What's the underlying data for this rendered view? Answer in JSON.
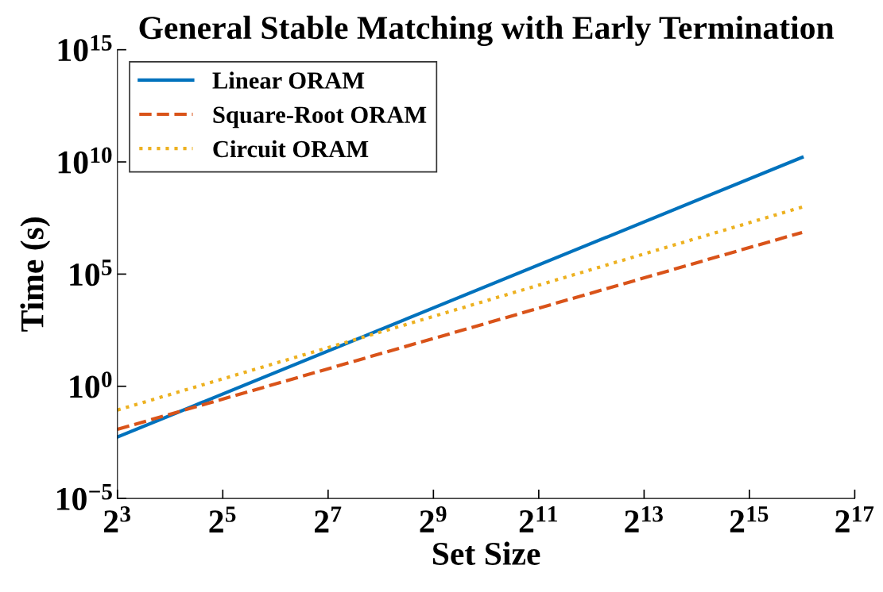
{
  "chart_data": {
    "type": "line",
    "title": "General Stable Matching with Early Termination",
    "xlabel": "Set Size",
    "ylabel": "Time (s)",
    "log": "xy",
    "legend": "top left",
    "grid": false,
    "xlim": [
      8,
      131072
    ],
    "xticks": [
      {
        "value": 8,
        "label": "2$^{3}$"
      },
      {
        "value": 32,
        "label": "2$^{5}$"
      },
      {
        "value": 128,
        "label": "2$^{7}$"
      },
      {
        "value": 512,
        "label": "2$^{9}$"
      },
      {
        "value": 2048,
        "label": "2$^{11}$"
      },
      {
        "value": 8192,
        "label": "2$^{13}$"
      },
      {
        "value": 32768,
        "label": "2$^{15}$"
      },
      {
        "value": 131072,
        "label": "2$^{17}$"
      }
    ],
    "ylim": [
      1e-05,
      1000000000000000.0
    ],
    "yticks": [
      {
        "value": 1e-05,
        "label": "10$^{−5}$"
      },
      {
        "value": 1,
        "label": "10$^{0}$"
      },
      {
        "value": 100000.0,
        "label": "10$^{5}$"
      },
      {
        "value": 10000000000.0,
        "label": "10$^{10}$"
      },
      {
        "value": 1000000000000000.0,
        "label": "10$^{15}$"
      }
    ],
    "x": [
      8,
      65536
    ],
    "series": [
      {
        "name": "Linear ORAM",
        "color": "#0072bd",
        "line_style": "solid",
        "values": [
          0.0055,
          16000000000.0
        ]
      },
      {
        "name": "Square-Root ORAM",
        "color": "#d95319",
        "line_style": "dashed",
        "values": [
          0.012,
          7200000.0
        ]
      },
      {
        "name": "Circuit ORAM",
        "color": "#edb120",
        "line_style": "dotted",
        "values": [
          0.087,
          97000000.0
        ]
      }
    ]
  }
}
